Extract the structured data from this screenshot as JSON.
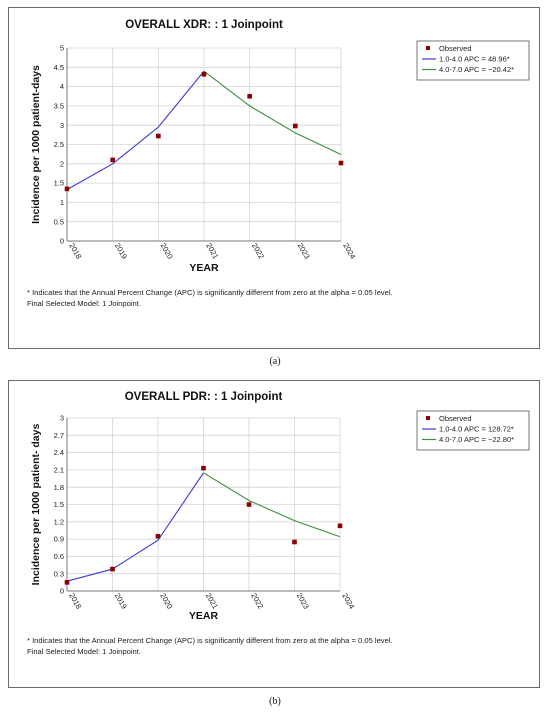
{
  "captions": [
    "(a)",
    "(b)"
  ],
  "chart_data": [
    {
      "type": "line",
      "title": "OVERALL  XDR: : 1 Joinpoint",
      "xlabel": "YEAR",
      "ylabel": "Incidence per 1000 patient-days",
      "x_ticks": [
        "2018",
        "2019",
        "2020",
        "2021",
        "2022",
        "2023",
        "2024"
      ],
      "y_ticks": [
        "0",
        "0.5",
        "1",
        "1.5",
        "2",
        "2.5",
        "3",
        "3.5",
        "4",
        "4.5",
        "5"
      ],
      "xlim": [
        0,
        6
      ],
      "ylim": [
        0,
        5
      ],
      "grid": true,
      "legend_position": "top-right",
      "observed": {
        "name": "Observed",
        "color": "#8b0000",
        "x": [
          0,
          1,
          2,
          3,
          4,
          5,
          6
        ],
        "y": [
          1.35,
          2.1,
          2.72,
          4.32,
          3.75,
          2.98,
          2.02
        ]
      },
      "series": [
        {
          "name": "1.0-4.0 APC  =  48.96*",
          "color": "#3a3ad6",
          "x": [
            0,
            1,
            2,
            3
          ],
          "y": [
            1.33,
            2.0,
            2.95,
            4.4
          ]
        },
        {
          "name": "4.0-7.0 APC  =  −20.42*",
          "color": "#3e8e3e",
          "x": [
            3,
            4,
            5,
            6
          ],
          "y": [
            4.4,
            3.5,
            2.8,
            2.24
          ]
        }
      ],
      "notes": [
        "* Indicates that the Annual Percent Change (APC) is significantly different from zero at the alpha = 0.05 level.",
        "Final Selected Model: 1 Joinpoint."
      ]
    },
    {
      "type": "line",
      "title": "OVERALL  PDR: : 1 Joinpoint",
      "xlabel": "YEAR",
      "ylabel": "Incidence per 1000 patient- days",
      "x_ticks": [
        "2018",
        "2019",
        "2020",
        "2021",
        "2022",
        "2023",
        "2024"
      ],
      "y_ticks": [
        "0",
        "0.3",
        "0.6",
        "0.9",
        "1.2",
        "1.5",
        "1.8",
        "2.1",
        "2.4",
        "2.7",
        "3"
      ],
      "xlim": [
        0,
        6
      ],
      "ylim": [
        0,
        3
      ],
      "grid": true,
      "legend_position": "top-right",
      "observed": {
        "name": "Observed",
        "color": "#8b0000",
        "x": [
          0,
          1,
          2,
          3,
          4,
          5,
          6
        ],
        "y": [
          0.15,
          0.38,
          0.95,
          2.13,
          1.5,
          0.85,
          1.13
        ]
      },
      "series": [
        {
          "name": "1.0-4.0 APC  =  128.72*",
          "color": "#3a3ad6",
          "x": [
            0,
            1,
            2,
            3
          ],
          "y": [
            0.17,
            0.38,
            0.88,
            2.05
          ]
        },
        {
          "name": "4.0-7.0 APC  =  −22.80*",
          "color": "#3e8e3e",
          "x": [
            3,
            4,
            5,
            6
          ],
          "y": [
            2.05,
            1.57,
            1.22,
            0.94
          ]
        }
      ],
      "notes": [
        "* Indicates that the Annual Percent Change (APC) is significantly different from zero at the alpha = 0.05 level.",
        "Final Selected Model: 1 Joinpoint."
      ]
    }
  ]
}
